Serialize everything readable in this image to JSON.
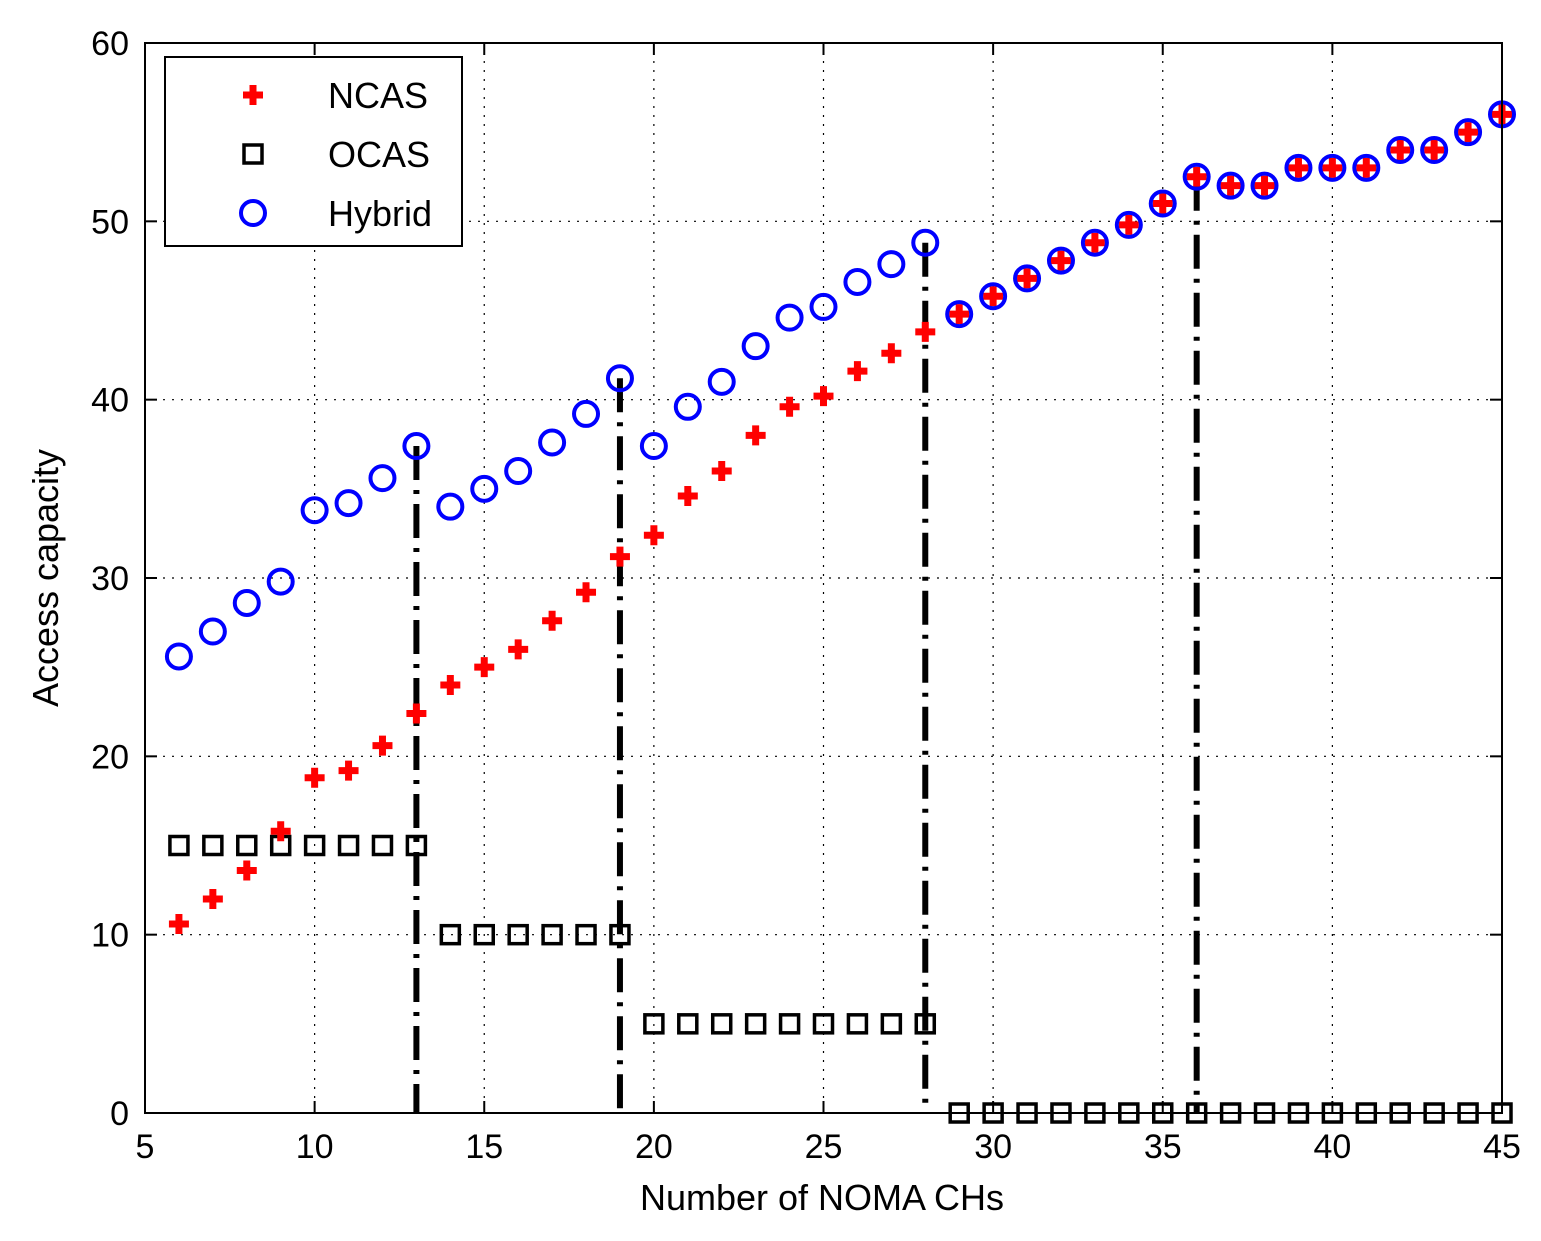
{
  "chart_data": {
    "type": "scatter",
    "title": "",
    "xlabel": "Number of NOMA CHs",
    "ylabel": "Access capacity",
    "xlim": [
      5,
      45
    ],
    "ylim": [
      0,
      60
    ],
    "xticks": [
      5,
      10,
      15,
      20,
      25,
      30,
      35,
      40,
      45
    ],
    "yticks": [
      0,
      10,
      20,
      30,
      40,
      50,
      60
    ],
    "grid": true,
    "legend_position": "top-left",
    "x": [
      6,
      7,
      8,
      9,
      10,
      11,
      12,
      13,
      14,
      15,
      16,
      17,
      18,
      19,
      20,
      21,
      22,
      23,
      24,
      25,
      26,
      27,
      28,
      29,
      30,
      31,
      32,
      33,
      34,
      35,
      36,
      37,
      38,
      39,
      40,
      41,
      42,
      43,
      44,
      45
    ],
    "series": [
      {
        "name": "NCAS",
        "marker": "plus",
        "color": "#ff0000",
        "values": [
          10.6,
          12,
          13.6,
          15.8,
          18.8,
          19.2,
          20.6,
          22.4,
          24,
          25,
          26,
          27.6,
          29.2,
          31.2,
          32.4,
          34.6,
          36,
          38,
          39.6,
          40.2,
          41.6,
          42.6,
          43.8,
          44.8,
          45.8,
          46.8,
          47.8,
          48.8,
          49.8,
          51,
          52.5,
          52,
          52,
          53,
          53,
          53,
          54,
          54,
          55,
          56
        ]
      },
      {
        "name": "OCAS",
        "marker": "square",
        "color": "#000000",
        "values": [
          15,
          15,
          15,
          15,
          15,
          15,
          15,
          15,
          10,
          10,
          10,
          10,
          10,
          10,
          5,
          5,
          5,
          5,
          5,
          5,
          5,
          5,
          5,
          0,
          0,
          0,
          0,
          0,
          0,
          0,
          0,
          0,
          0,
          0,
          0,
          0,
          0,
          0,
          0,
          0
        ]
      },
      {
        "name": "Hybrid",
        "marker": "circle",
        "color": "#0000ff",
        "values": [
          25.6,
          27,
          28.6,
          29.8,
          33.8,
          34.2,
          35.6,
          37.4,
          34,
          35,
          36,
          37.6,
          39.2,
          41.2,
          37.4,
          39.6,
          41,
          43,
          44.6,
          45.2,
          46.6,
          47.6,
          48.8,
          44.8,
          45.8,
          46.8,
          47.8,
          48.8,
          49.8,
          51,
          52.5,
          52,
          52,
          53,
          53,
          53,
          54,
          54,
          55,
          56
        ]
      }
    ],
    "vertical_dashdot_lines": [
      {
        "x": 13,
        "y_top": 37.4
      },
      {
        "x": 19,
        "y_top": 41.2
      },
      {
        "x": 28,
        "y_top": 48.8
      },
      {
        "x": 36,
        "y_top": 52.5
      }
    ]
  },
  "colors": {
    "ncas": "#ff0000",
    "ocas": "#000000",
    "hybrid": "#0000ff",
    "grid": "#000000",
    "background": "#ffffff"
  }
}
